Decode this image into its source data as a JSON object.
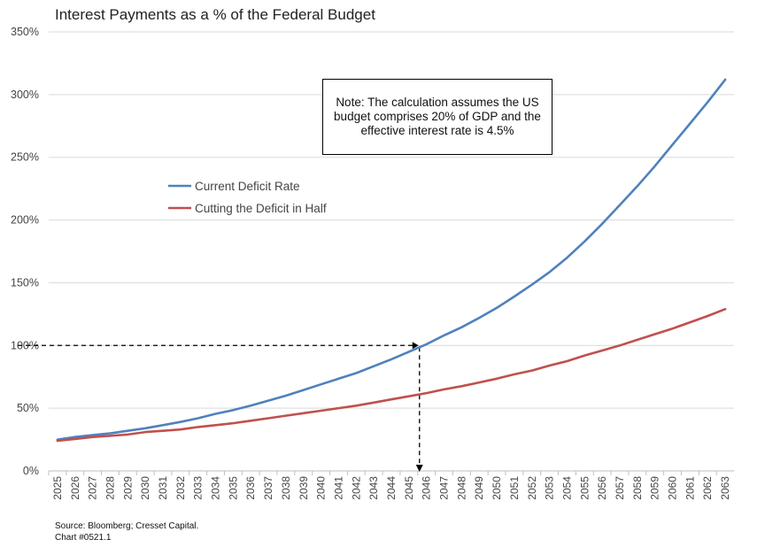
{
  "chart_data": {
    "type": "line",
    "title": "Interest Payments as a % of the Federal Budget",
    "ylim": [
      0,
      350
    ],
    "yticks": [
      "0%",
      "50%",
      "100%",
      "150%",
      "200%",
      "250%",
      "300%",
      "350%"
    ],
    "ytick_values": [
      0,
      50,
      100,
      150,
      200,
      250,
      300,
      350
    ],
    "x": [
      "2025",
      "2026",
      "2027",
      "2028",
      "2029",
      "2030",
      "2031",
      "2032",
      "2033",
      "2034",
      "2035",
      "2036",
      "2037",
      "2038",
      "2039",
      "2040",
      "2041",
      "2042",
      "2043",
      "2044",
      "2045",
      "2046",
      "2047",
      "2048",
      "2049",
      "2050",
      "2051",
      "2052",
      "2053",
      "2054",
      "2055",
      "2056",
      "2057",
      "2058",
      "2059",
      "2060",
      "2061",
      "2062",
      "2063"
    ],
    "grid": true,
    "legend_position": "left-middle",
    "series": [
      {
        "name": "Current Deficit Rate",
        "color": "#4f81bd",
        "values": [
          25,
          27,
          28.5,
          30,
          32,
          34,
          36.5,
          39,
          42,
          45.5,
          48.5,
          52,
          56,
          60,
          64.5,
          69,
          73.5,
          78,
          83.5,
          89,
          95,
          101,
          108,
          114.5,
          122,
          130,
          139,
          148.5,
          158.5,
          170,
          183,
          197,
          212,
          227,
          243,
          260,
          277,
          294,
          312
        ]
      },
      {
        "name": "Cutting the Deficit in Half",
        "color": "#c0504d",
        "values": [
          24,
          25.5,
          27,
          28,
          29,
          31,
          32,
          33,
          35,
          36.5,
          38,
          40,
          42,
          44,
          46,
          48,
          50,
          52,
          54.5,
          57,
          59.5,
          62,
          65,
          67.5,
          70.5,
          73.5,
          77,
          80,
          84,
          87.5,
          92,
          96,
          100,
          104.5,
          109,
          113.5,
          118.5,
          123.5,
          129
        ]
      }
    ],
    "annotation": {
      "note": "Note: The calculation assumes the US budget comprises 20% of GDP and the effective interest rate is 4.5%",
      "crosshair_y": 100,
      "crosshair_x": "2045"
    },
    "source": "Source: Bloomberg; Cresset Capital.",
    "chart_id": "Chart #0521.1"
  }
}
